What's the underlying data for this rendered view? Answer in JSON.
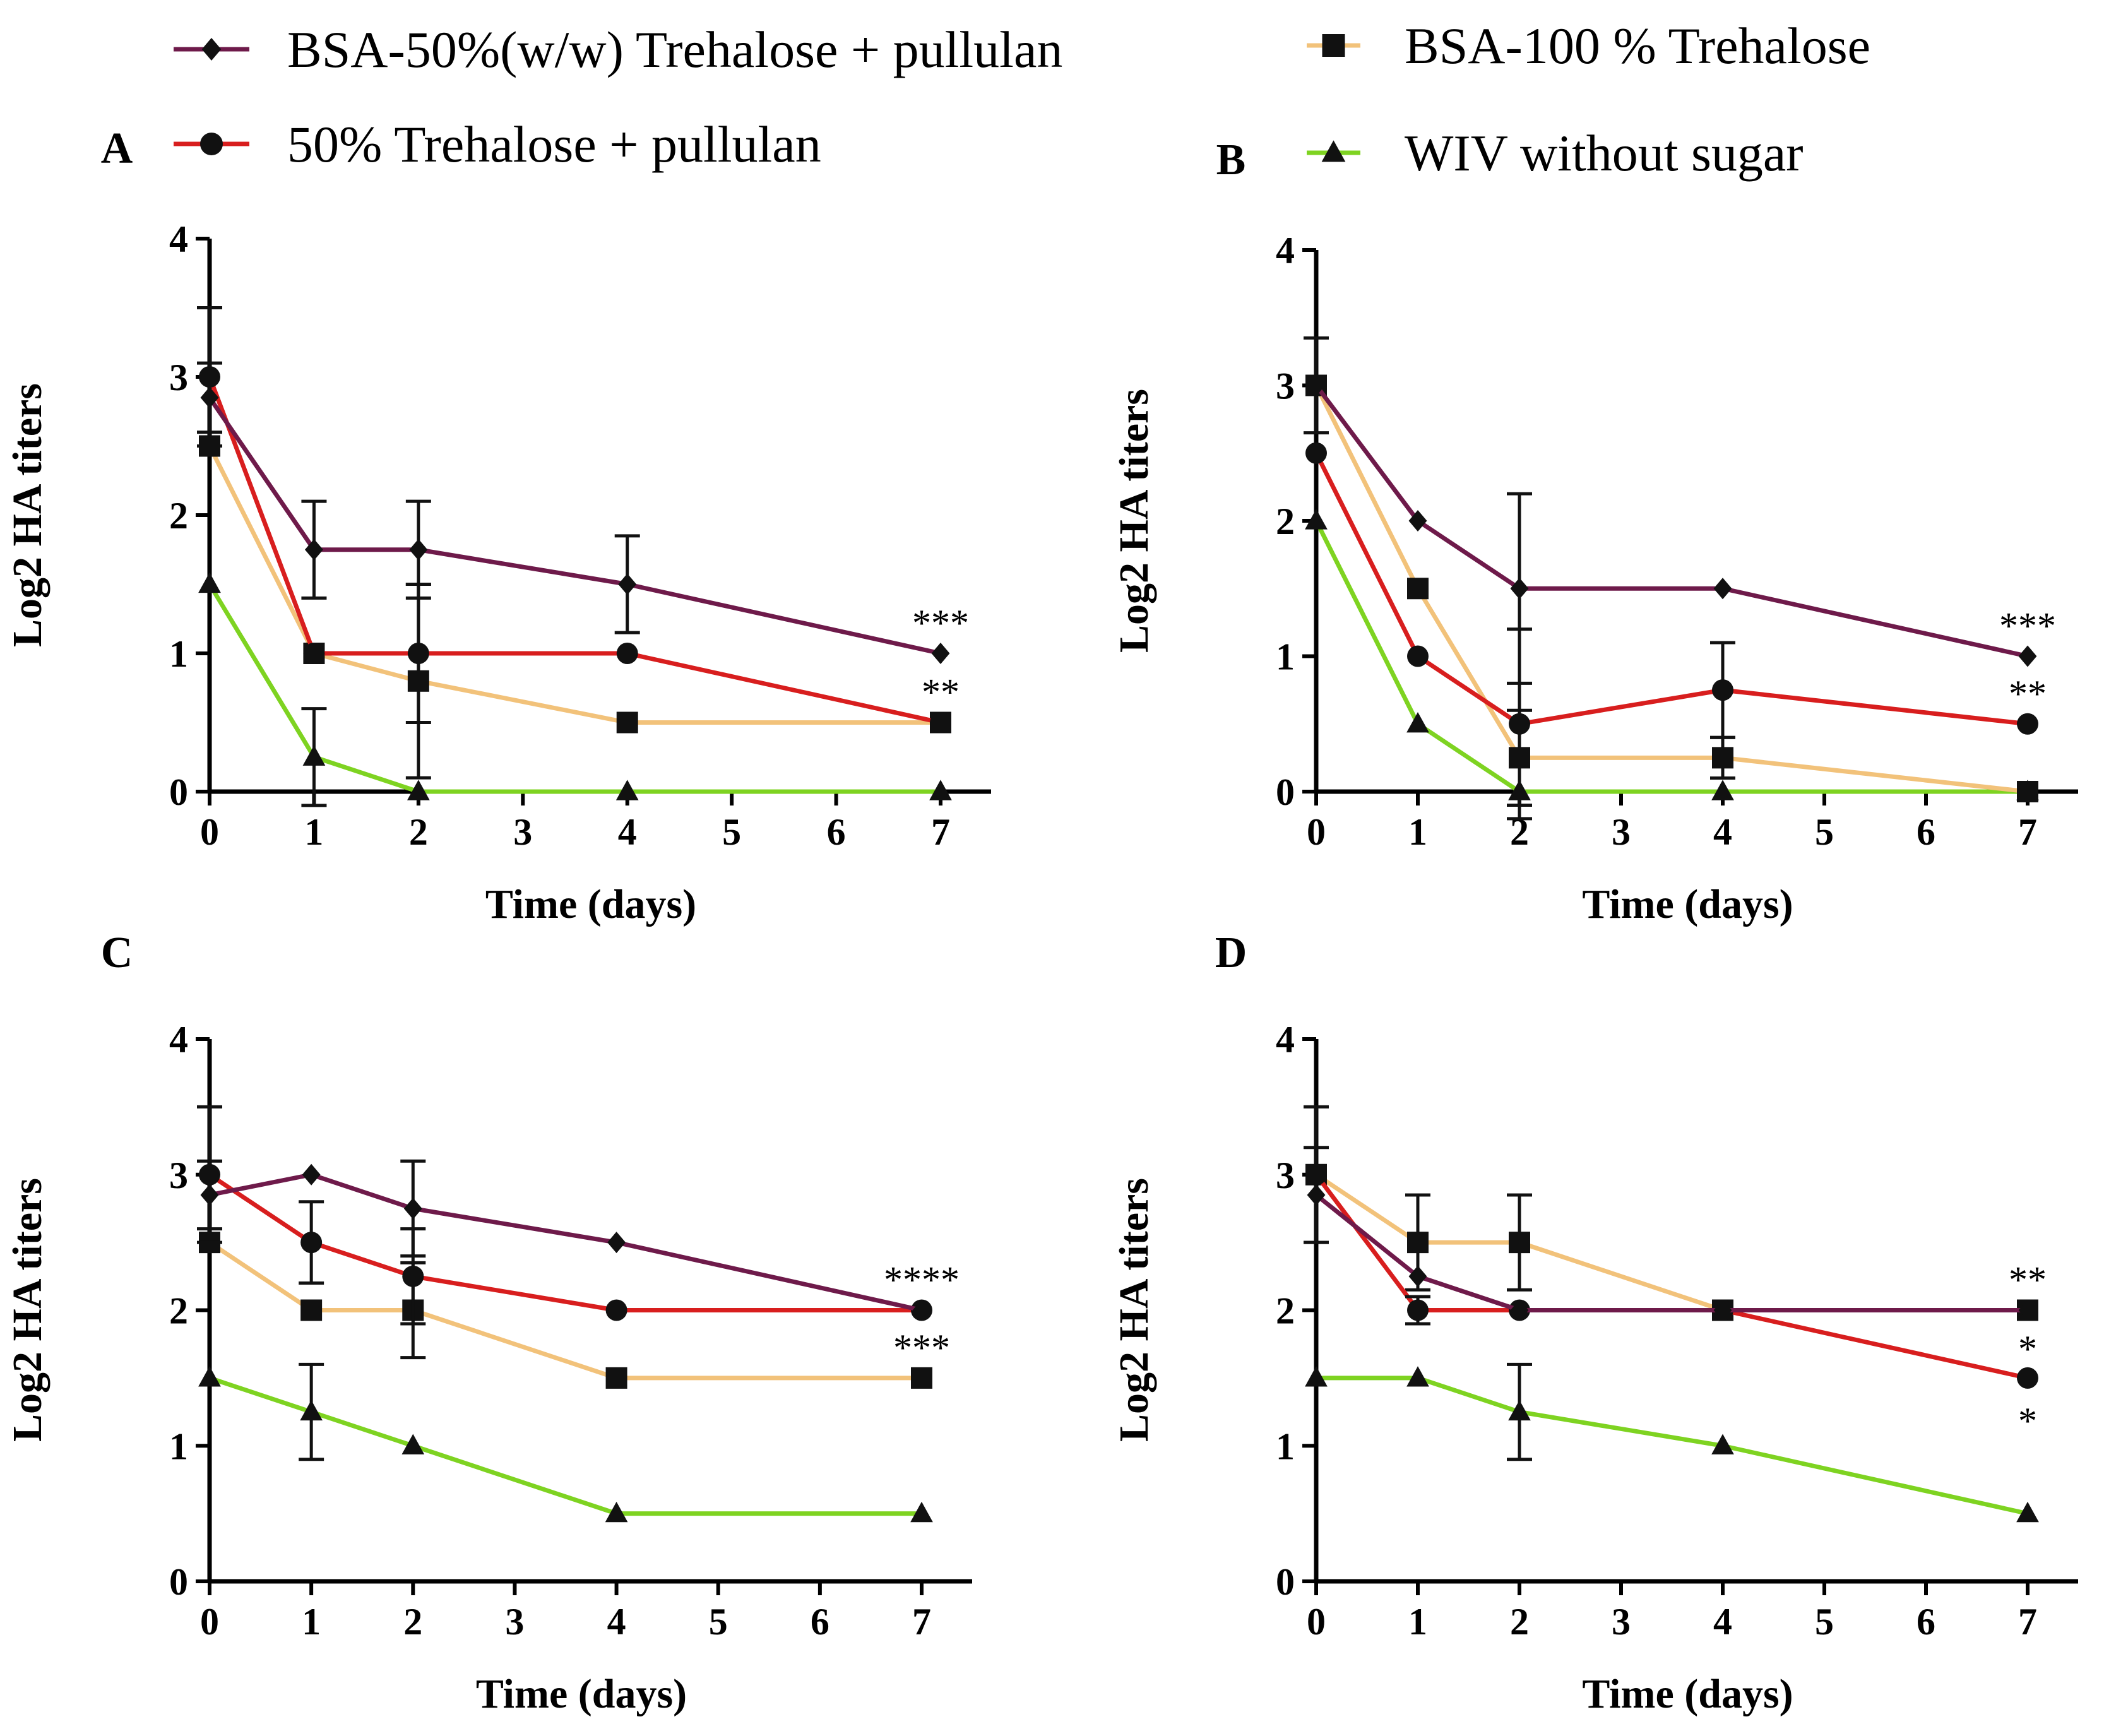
{
  "legend": [
    {
      "key": "bsa_tp",
      "label": "BSA-50%(w/w) Trehalose + pullulan",
      "color": "#6e1a4a",
      "marker": "diamond"
    },
    {
      "key": "bsa_t",
      "label": "BSA-100 % Trehalose",
      "color": "#f2c27a",
      "marker": "square"
    },
    {
      "key": "tp",
      "label": "50% Trehalose + pullulan",
      "color": "#d81e1e",
      "marker": "circle"
    },
    {
      "key": "wiv",
      "label": "WIV without sugar",
      "color": "#7ed321",
      "marker": "triangle"
    }
  ],
  "chart_data": [
    {
      "type": "line",
      "panel": "A",
      "xlabel": "Time (days)",
      "ylabel": "Log2 HA titers",
      "xlim": [
        0,
        7
      ],
      "ylim": [
        0,
        4
      ],
      "xticks": [
        "0",
        "1",
        "2",
        "3",
        "4",
        "5",
        "6",
        "7"
      ],
      "yticks": [
        "0",
        "1",
        "2",
        "3",
        "4"
      ],
      "x": [
        0,
        1,
        2,
        4,
        7
      ],
      "series": [
        {
          "key": "bsa_tp",
          "values": [
            2.85,
            1.75,
            1.75,
            1.5,
            1.0
          ],
          "err": [
            0.25,
            0.35,
            0.35,
            0.35,
            0
          ]
        },
        {
          "key": "bsa_t",
          "values": [
            2.5,
            1.0,
            0.8,
            0.5,
            0.5
          ],
          "err": [
            0,
            0,
            0.7,
            0,
            0
          ]
        },
        {
          "key": "tp",
          "values": [
            3.0,
            1.0,
            1.0,
            1.0,
            0.5
          ],
          "err": [
            0.5,
            0,
            0.5,
            0,
            0
          ]
        },
        {
          "key": "wiv",
          "values": [
            1.5,
            0.25,
            0.0,
            0.0,
            0.0
          ],
          "err": [
            0,
            0.35,
            0,
            0,
            0
          ]
        }
      ],
      "annotations": [
        {
          "text": "***",
          "x": 7,
          "y": 1.0
        },
        {
          "text": "**",
          "x": 7,
          "y": 0.5
        }
      ]
    },
    {
      "type": "line",
      "panel": "B",
      "xlabel": "Time (days)",
      "ylabel": "Log2 HA titers",
      "xlim": [
        0,
        7
      ],
      "ylim": [
        0,
        4
      ],
      "xticks": [
        "0",
        "1",
        "2",
        "3",
        "4",
        "5",
        "6",
        "7"
      ],
      "yticks": [
        "0",
        "1",
        "2",
        "3",
        "4"
      ],
      "x": [
        0,
        1,
        2,
        4,
        7
      ],
      "series": [
        {
          "key": "bsa_tp",
          "values": [
            3.0,
            2.0,
            1.5,
            1.5,
            1.0
          ],
          "err": [
            0.35,
            0,
            0.7,
            0,
            0
          ]
        },
        {
          "key": "bsa_t",
          "values": [
            3.0,
            1.5,
            0.25,
            0.25,
            0.0
          ],
          "err": [
            0,
            0,
            0.35,
            0.15,
            0
          ]
        },
        {
          "key": "tp",
          "values": [
            2.5,
            1.0,
            0.5,
            0.75,
            0.5
          ],
          "err": [
            0,
            0,
            0.7,
            0.35,
            0
          ]
        },
        {
          "key": "wiv",
          "values": [
            2.0,
            0.5,
            0.0,
            0.0,
            0.0
          ],
          "err": [
            0,
            0,
            0,
            0,
            0
          ]
        }
      ],
      "annotations": [
        {
          "text": "***",
          "x": 7,
          "y": 1.0
        },
        {
          "text": "**",
          "x": 7,
          "y": 0.5
        }
      ]
    },
    {
      "type": "line",
      "panel": "C",
      "xlabel": "Time (days)",
      "ylabel": "Log2 HA titers",
      "xlim": [
        0,
        7
      ],
      "ylim": [
        0,
        4
      ],
      "xticks": [
        "0",
        "1",
        "2",
        "3",
        "4",
        "5",
        "6",
        "7"
      ],
      "yticks": [
        "0",
        "1",
        "2",
        "3",
        "4"
      ],
      "x": [
        0,
        1,
        2,
        4,
        7
      ],
      "series": [
        {
          "key": "bsa_tp",
          "values": [
            2.85,
            3.0,
            2.75,
            2.5,
            2.0
          ],
          "err": [
            0.25,
            0,
            0.35,
            0,
            0
          ]
        },
        {
          "key": "bsa_t",
          "values": [
            2.5,
            2.0,
            2.0,
            1.5,
            1.5
          ],
          "err": [
            0,
            0,
            0.35,
            0,
            0
          ]
        },
        {
          "key": "tp",
          "values": [
            3.0,
            2.5,
            2.25,
            2.0,
            2.0
          ],
          "err": [
            0.5,
            0.3,
            0.35,
            0,
            0
          ]
        },
        {
          "key": "wiv",
          "values": [
            1.5,
            1.25,
            1.0,
            0.5,
            0.5
          ],
          "err": [
            0,
            0.35,
            0,
            0,
            0
          ]
        }
      ],
      "annotations": [
        {
          "text": "****",
          "x": 7,
          "y": 2.0
        },
        {
          "text": "***",
          "x": 7,
          "y": 1.5
        }
      ]
    },
    {
      "type": "line",
      "panel": "D",
      "xlabel": "Time (days)",
      "ylabel": "Log2 HA titers",
      "xlim": [
        0,
        7
      ],
      "ylim": [
        0,
        4
      ],
      "xticks": [
        "0",
        "1",
        "2",
        "3",
        "4",
        "5",
        "6",
        "7"
      ],
      "yticks": [
        "0",
        "1",
        "2",
        "3",
        "4"
      ],
      "x": [
        0,
        1,
        2,
        4,
        7
      ],
      "series": [
        {
          "key": "bsa_tp",
          "values": [
            2.85,
            2.25,
            2.0,
            2.0,
            2.0
          ],
          "err": [
            0.35,
            0,
            0,
            0,
            0
          ]
        },
        {
          "key": "bsa_t",
          "values": [
            3.0,
            2.5,
            2.5,
            2.0,
            2.0
          ],
          "err": [
            0,
            0.35,
            0.35,
            0,
            0
          ]
        },
        {
          "key": "tp",
          "values": [
            3.0,
            2.0,
            2.0,
            2.0,
            1.5
          ],
          "err": [
            0.5,
            0.1,
            0,
            0,
            0
          ]
        },
        {
          "key": "wiv",
          "values": [
            1.5,
            1.5,
            1.25,
            1.0,
            0.5
          ],
          "err": [
            0,
            0,
            0.35,
            0,
            0
          ]
        }
      ],
      "annotations": [
        {
          "text": "**",
          "x": 7,
          "y": 2.0
        },
        {
          "text": "*",
          "x": 7,
          "y": 1.5
        },
        {
          "text": "*",
          "x": 7,
          "y": 1.5
        }
      ]
    }
  ]
}
